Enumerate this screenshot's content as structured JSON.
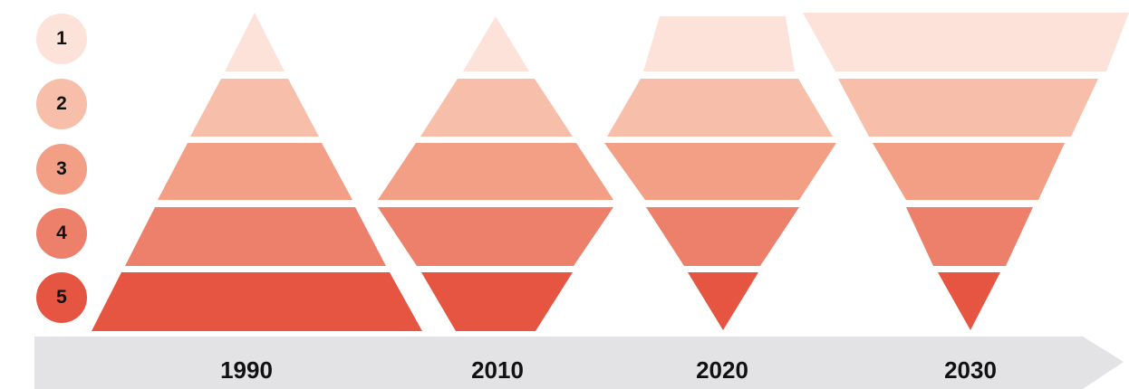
{
  "levels": [
    {
      "label": "1",
      "color": "#fce2d9"
    },
    {
      "label": "2",
      "color": "#f7bfaa"
    },
    {
      "label": "3",
      "color": "#f29f85"
    },
    {
      "label": "4",
      "color": "#ec806a"
    },
    {
      "label": "5",
      "color": "#e65541"
    }
  ],
  "timeline": {
    "color": "#e3e3e5",
    "years": [
      "1990",
      "2010",
      "2020",
      "2030"
    ]
  }
}
